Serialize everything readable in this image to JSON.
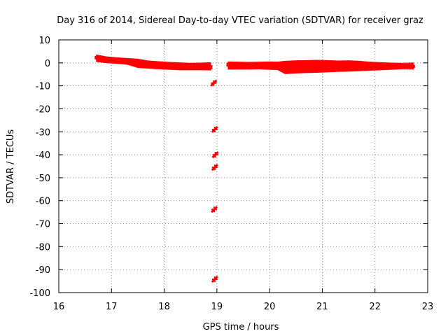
{
  "chart_data": {
    "type": "scatter",
    "title": "Day 316 of 2014, Sidereal Day-to-day VTEC variation (SDTVAR) for receiver graz",
    "xlabel": "GPS time / hours",
    "ylabel": "SDTVAR / TECUs",
    "xlim": [
      16,
      23
    ],
    "ylim": [
      -100,
      10
    ],
    "xticks": [
      16,
      17,
      18,
      19,
      20,
      21,
      22,
      23
    ],
    "yticks": [
      10,
      0,
      -10,
      -20,
      -30,
      -40,
      -50,
      -60,
      -70,
      -80,
      -90,
      -100
    ],
    "grid": true,
    "series": [
      {
        "name": "SDTVAR",
        "color": "#ff0000",
        "marker": "plus",
        "band_x": [
          16.72,
          16.9,
          17.1,
          17.3,
          17.5,
          17.7,
          17.9,
          18.1,
          18.3,
          18.5,
          18.7,
          18.9,
          19.22,
          19.4,
          19.6,
          19.8,
          20.0,
          20.15,
          20.3,
          20.5,
          20.7,
          20.9,
          21.1,
          21.3,
          21.5,
          21.7,
          21.9,
          22.1,
          22.3,
          22.5,
          22.75
        ],
        "band_lo": [
          1.0,
          0.5,
          0.2,
          -0.2,
          -1.6,
          -1.9,
          -2.2,
          -2.4,
          -2.6,
          -2.6,
          -2.6,
          -2.7,
          -2.3,
          -2.3,
          -2.3,
          -2.2,
          -2.4,
          -2.5,
          -4.3,
          -4.0,
          -3.8,
          -3.7,
          -3.5,
          -3.3,
          -3.2,
          -3.0,
          -2.8,
          -2.6,
          -2.4,
          -2.2,
          -2.3
        ],
        "band_hi": [
          3.0,
          2.2,
          1.8,
          1.5,
          1.2,
          0.4,
          0.1,
          -0.2,
          -0.4,
          -0.6,
          -0.5,
          -0.3,
          0.0,
          -0.1,
          -0.2,
          -0.1,
          0.0,
          -0.1,
          0.3,
          0.5,
          0.6,
          0.7,
          0.6,
          0.4,
          0.5,
          0.3,
          -0.1,
          -0.3,
          -0.5,
          -0.6,
          -0.4
        ],
        "outlier_x": [
          18.94,
          18.96,
          18.97,
          18.96,
          18.95,
          18.96
        ],
        "outlier_y": [
          -8.8,
          -29.0,
          -40.0,
          -45.5,
          -63.8,
          -94.2
        ]
      }
    ]
  }
}
